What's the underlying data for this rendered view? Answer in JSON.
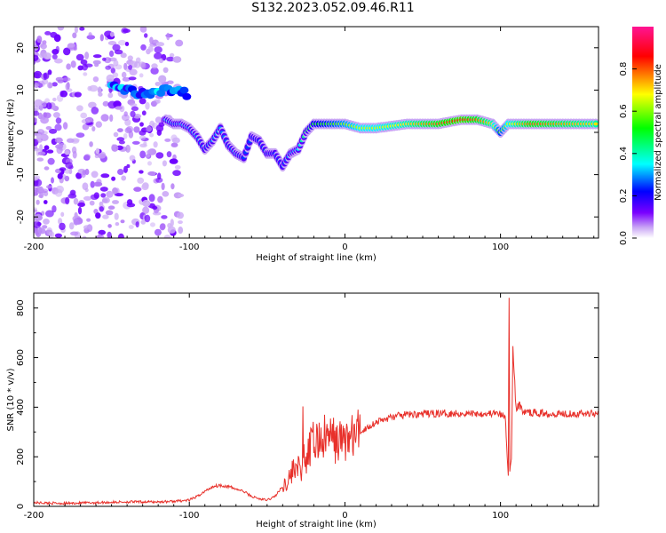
{
  "title": "S132.2023.052.09.46.R11",
  "chart_data": [
    {
      "type": "heatmap",
      "title": "S132.2023.052.09.46.R11",
      "xlabel": "Height of straight line (km)",
      "ylabel": "Frequency (Hz)",
      "xlim": [
        -200,
        163
      ],
      "ylim": [
        -25,
        25
      ],
      "xticks": [
        -200,
        -100,
        0,
        100
      ],
      "xtick_labels": [
        "-200",
        "-100",
        "0",
        "100"
      ],
      "yticks": [
        -20,
        -10,
        0,
        10,
        20
      ],
      "ytick_labels": [
        "-20",
        "-10",
        "0",
        "10",
        "20"
      ],
      "colorbar": {
        "label": "Normalized spectral amplitude",
        "range": [
          0,
          1
        ],
        "ticks": [
          0.0,
          0.2,
          0.4,
          0.6,
          0.8
        ],
        "tick_labels": [
          "0.0",
          "0.2",
          "0.4",
          "0.6",
          "0.8"
        ],
        "colors": [
          "#ffffff",
          "#c9a6f5",
          "#7a00ff",
          "#0000ff",
          "#00ffff",
          "#00ff00",
          "#ffff00",
          "#ff0000",
          "#ff1493"
        ]
      },
      "ridge": {
        "x": [
          -115,
          -110,
          -105,
          -100,
          -95,
          -90,
          -85,
          -80,
          -75,
          -70,
          -65,
          -60,
          -55,
          -50,
          -45,
          -40,
          -35,
          -30,
          -25,
          -20,
          -10,
          0,
          10,
          20,
          40,
          60,
          75,
          85,
          95,
          100,
          105,
          120,
          140,
          163
        ],
        "y": [
          3,
          2,
          2,
          1,
          -1,
          -4,
          -2,
          1,
          -3,
          -5,
          -6,
          -1,
          -2,
          -5,
          -5,
          -8,
          -5,
          -4,
          0,
          2,
          2,
          2,
          1,
          1,
          2,
          2,
          3,
          3,
          2,
          0,
          2,
          2,
          2,
          2
        ],
        "intensity": [
          0.35,
          0.3,
          0.35,
          0.3,
          0.3,
          0.25,
          0.3,
          0.3,
          0.25,
          0.3,
          0.25,
          0.25,
          0.25,
          0.25,
          0.25,
          0.25,
          0.3,
          0.35,
          0.45,
          0.5,
          0.55,
          0.6,
          0.65,
          0.65,
          0.7,
          0.8,
          0.85,
          0.8,
          0.7,
          0.55,
          0.65,
          0.8,
          0.75,
          0.7
        ]
      },
      "upper_band": {
        "x": [
          -150,
          -140,
          -130,
          -120,
          -110,
          -100
        ],
        "y": [
          11,
          10,
          9,
          10,
          10,
          9
        ]
      }
    },
    {
      "type": "line",
      "xlabel": "Height of straight line (km)",
      "ylabel": "SNR (10 * v/v)",
      "xlim": [
        -200,
        163
      ],
      "ylim": [
        0,
        860
      ],
      "xticks": [
        -200,
        -100,
        0,
        100
      ],
      "xtick_labels": [
        "-200",
        "-100",
        "0",
        "100"
      ],
      "yticks": [
        0,
        200,
        400,
        600,
        800
      ],
      "ytick_labels": [
        "0",
        "200",
        "400",
        "600",
        "800"
      ],
      "color": "#e8302a",
      "series": [
        {
          "x": [
            -200,
            -180,
            -160,
            -140,
            -120,
            -110,
            -100,
            -95,
            -90,
            -85,
            -80,
            -75,
            -70,
            -65,
            -60,
            -55,
            -50,
            -45,
            -40,
            -35,
            -32,
            -30,
            -28,
            -27,
            -26,
            -24,
            -22,
            -20,
            -15,
            -10,
            -5,
            0,
            5,
            10,
            15,
            20,
            25,
            30,
            40,
            60,
            80,
            95,
            100,
            103,
            104,
            105,
            105.5,
            106,
            107,
            108,
            110,
            112,
            115,
            130,
            150,
            163
          ],
          "y": [
            15,
            12,
            15,
            18,
            18,
            20,
            25,
            40,
            60,
            80,
            85,
            80,
            70,
            60,
            40,
            30,
            25,
            40,
            80,
            120,
            170,
            160,
            120,
            300,
            140,
            200,
            240,
            260,
            270,
            280,
            260,
            270,
            280,
            300,
            320,
            340,
            350,
            360,
            370,
            375,
            375,
            375,
            370,
            360,
            250,
            120,
            860,
            140,
            200,
            640,
            390,
            410,
            380,
            375,
            375,
            375
          ]
        }
      ]
    }
  ]
}
